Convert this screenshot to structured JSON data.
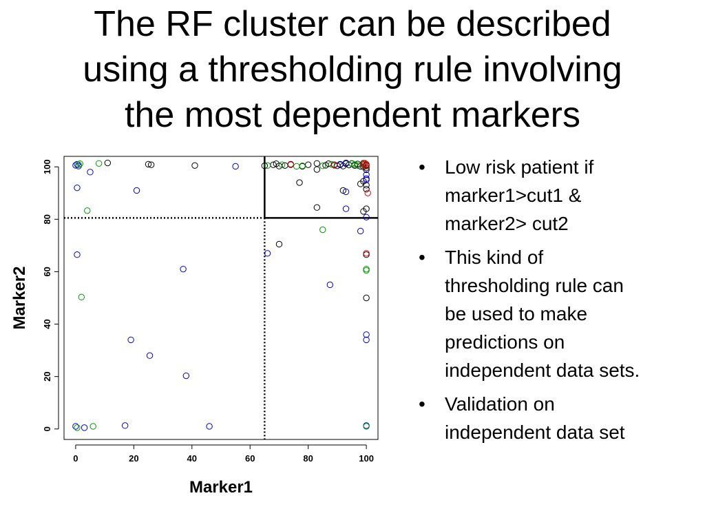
{
  "slide": {
    "title_lines": [
      "The RF cluster can be described",
      "using a thresholding rule involving",
      "the most dependent markers"
    ],
    "bullets": [
      {
        "lines": [
          "Low risk patient if",
          "marker1>cut1 &",
          "marker2> cut2"
        ]
      },
      {
        "lines": [
          "This kind of",
          "thresholding rule can",
          "be used to make",
          "predictions on",
          "independent data sets."
        ]
      },
      {
        "lines": [
          "Validation on",
          "independent data set"
        ]
      }
    ]
  },
  "chart_data": {
    "type": "scatter",
    "title": "",
    "xlabel": "Marker1",
    "ylabel": "Marker2",
    "xlim": [
      -4,
      104
    ],
    "ylim": [
      -4,
      104
    ],
    "xticks": [
      0,
      20,
      40,
      60,
      80,
      100
    ],
    "yticks": [
      0,
      20,
      40,
      60,
      80,
      100
    ],
    "grid": false,
    "marker": "open-circle",
    "thresholds": {
      "cut1": 65,
      "cut2": 80.5
    },
    "series": [
      {
        "color": "#000000",
        "points": [
          [
            11,
            101.5
          ],
          [
            25,
            101
          ],
          [
            26,
            100.8
          ],
          [
            41,
            100.5
          ],
          [
            65,
            100.4
          ],
          [
            68,
            100.8
          ],
          [
            69,
            101.2
          ],
          [
            70,
            100.3
          ],
          [
            72,
            100.5
          ],
          [
            74,
            101
          ],
          [
            78,
            100.2
          ],
          [
            80,
            100.8
          ],
          [
            83,
            101.3
          ],
          [
            83,
            99
          ],
          [
            86,
            100.6
          ],
          [
            87,
            101.2
          ],
          [
            89,
            100.8
          ],
          [
            90,
            100.4
          ],
          [
            91,
            101
          ],
          [
            92,
            100.3
          ],
          [
            93,
            101.5
          ],
          [
            94,
            100.7
          ],
          [
            95,
            101.3
          ],
          [
            96,
            100.5
          ],
          [
            97,
            101.1
          ],
          [
            98,
            100.2
          ],
          [
            99,
            101.4
          ],
          [
            99,
            100
          ],
          [
            100,
            100.6
          ],
          [
            100,
            99.6
          ],
          [
            100,
            98.9
          ],
          [
            98,
            93.5
          ],
          [
            100,
            93
          ],
          [
            99,
            94.5
          ],
          [
            100,
            91.5
          ],
          [
            77,
            94
          ],
          [
            92,
            91
          ],
          [
            83,
            84.5
          ],
          [
            100,
            84
          ],
          [
            99,
            83
          ],
          [
            70,
            70.5
          ],
          [
            100,
            66.5
          ],
          [
            100,
            50
          ]
        ]
      },
      {
        "color": "#0000cc",
        "points": [
          [
            0,
            100.6
          ],
          [
            0.5,
            101
          ],
          [
            1,
            100.3
          ],
          [
            5,
            98
          ],
          [
            55,
            100.2
          ],
          [
            91,
            100.8
          ],
          [
            93,
            101.2
          ],
          [
            100,
            97
          ],
          [
            100,
            95.5
          ],
          [
            100,
            95
          ],
          [
            0.5,
            92
          ],
          [
            21,
            91
          ],
          [
            93,
            90.5
          ],
          [
            93,
            84
          ],
          [
            100,
            80.8
          ],
          [
            98,
            75.5
          ],
          [
            66,
            67
          ],
          [
            0.5,
            66.5
          ],
          [
            37,
            61
          ],
          [
            87.5,
            55
          ],
          [
            100,
            36
          ],
          [
            100,
            34
          ],
          [
            19,
            34
          ],
          [
            25.5,
            28
          ],
          [
            38,
            20.3
          ],
          [
            0,
            1
          ],
          [
            3,
            0.5
          ],
          [
            17,
            1.3
          ],
          [
            46,
            1
          ],
          [
            100,
            1.3
          ]
        ]
      },
      {
        "color": "#009900",
        "points": [
          [
            1,
            100.8
          ],
          [
            1.5,
            101.2
          ],
          [
            8,
            101.3
          ],
          [
            66,
            100.5
          ],
          [
            71,
            100.8
          ],
          [
            76,
            100.2
          ],
          [
            78,
            100.4
          ],
          [
            85,
            100.4
          ],
          [
            88,
            101
          ],
          [
            95,
            101.2
          ],
          [
            96,
            100.9
          ],
          [
            97,
            100.5
          ],
          [
            99,
            101
          ],
          [
            100,
            100.4
          ],
          [
            4,
            83.3
          ],
          [
            85,
            76
          ],
          [
            100,
            61
          ],
          [
            100,
            60.5
          ],
          [
            2,
            50.3
          ],
          [
            0.5,
            0.5
          ],
          [
            6,
            1
          ],
          [
            100,
            1
          ]
        ]
      },
      {
        "color": "#dd0000",
        "points": [
          [
            74,
            100.8
          ],
          [
            89,
            100.6
          ],
          [
            99,
            100.8
          ],
          [
            100,
            101
          ],
          [
            100,
            100.3
          ],
          [
            99.5,
            101.4
          ],
          [
            100.5,
            90
          ],
          [
            100,
            67
          ]
        ]
      }
    ]
  }
}
